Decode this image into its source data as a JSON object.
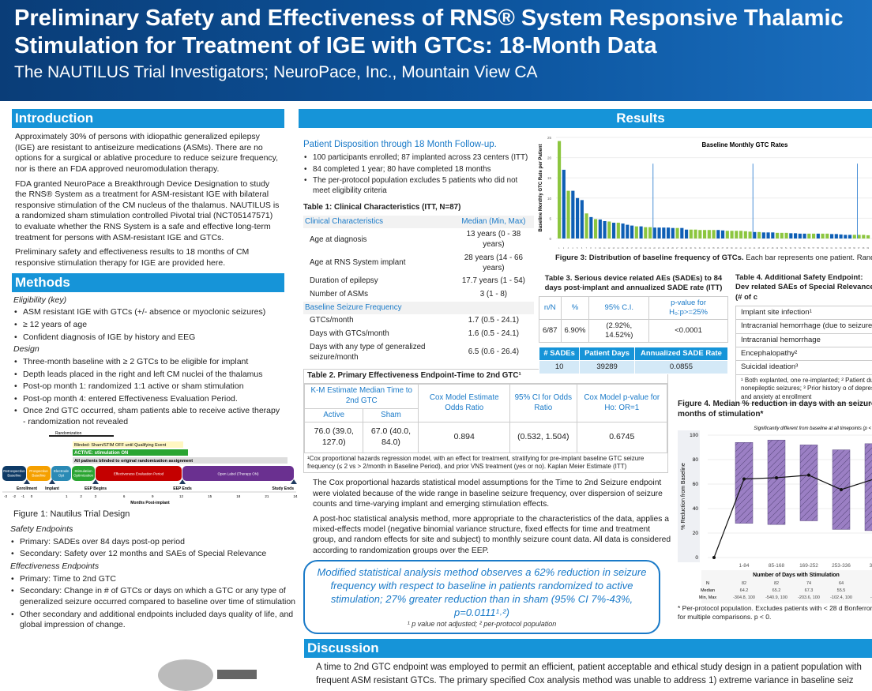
{
  "header": {
    "title_line1": "Preliminary Safety and Effectiveness of RNS® System Responsive Thalamic",
    "title_line2": "Stimulation for Treatment of IGE with GTCs: 18-Month Data",
    "authors": "The NAUTILUS Trial Investigators; NeuroPace, Inc., Mountain View CA"
  },
  "intro": {
    "heading": "Introduction",
    "paragraphs": [
      "Approximately 30% of persons with idiopathic generalized epilepsy (IGE) are resistant to antiseizure medications (ASMs). There are no options for a surgical or ablative procedure to reduce seizure frequency, nor is there an FDA approved neuromodulation therapy.",
      "FDA granted NeuroPace a Breakthrough Device Designation to study the RNS® System as a treatment for ASM-resistant IGE with bilateral responsive stimulation of the CM nucleus of the thalamus. NAUTILUS is a randomized sham stimulation controlled Pivotal trial (NCT05147571) to evaluate whether the RNS System is a safe and effective long-term treatment for persons with ASM-resistant IGE and GTCs.",
      "Preliminary safety and effectiveness results to 18 months of CM responsive stimulation therapy for IGE are provided here."
    ]
  },
  "methods": {
    "heading": "Methods",
    "eligibility_label": "Eligibility (key)",
    "eligibility": [
      "ASM resistant IGE with GTCs (+/- absence or myoclonic seizures)",
      "≥ 12 years of age",
      "Confident diagnosis of IGE by history and EEG"
    ],
    "design_label": "Design",
    "design": [
      "Three-month baseline with ≥ 2 GTCs to be eligible for implant",
      "Depth leads placed in the right and left CM nuclei of the thalamus",
      "Post-op month 1: randomized 1:1 active or sham stimulation",
      "Post-op month 4: entered Effectiveness Evaluation Period.",
      "Once 2nd GTC occurred, sham patients able to receive active therapy - randomization not revealed"
    ],
    "figure1": {
      "randomization": "Randomization",
      "event": "Blinded: Sham/STIM OFF until Qualifying Event",
      "active": "ACTIVE: stimulation ON",
      "blinded": "All patients blinded to original randomization assignment",
      "phases": [
        "Retrospective Baseline",
        "Prospective Baseline",
        "Electrode Opt",
        "Stimulation Optimization",
        "Effectiveness Evaluation Period",
        "Open Label (Therapy ON)"
      ],
      "milestones": [
        "Enrollment",
        "Implant",
        "EEP Begins",
        "EEP Ends",
        "Study Ends"
      ],
      "ticks": [
        "-3",
        "-2",
        "-1",
        "0",
        "1",
        "2",
        "3",
        "6",
        "9",
        "12",
        "15",
        "18",
        "21",
        "24"
      ],
      "xlabel": "Months Post-implant",
      "caption": "Figure 1: Nautilus Trial Design"
    },
    "safety_label": "Safety Endpoints",
    "safety": [
      "Primary: SADEs over 84 days post-op period",
      "Secondary: Safety over 12 months and SAEs of Special Relevance"
    ],
    "effect_label": "Effectiveness Endpoints",
    "effect": [
      "Primary: Time to 2nd GTC",
      "Secondary: Change in # of GTCs or days on which a GTC or any type of generalized seizure occurred compared to baseline over time of stimulation",
      "Other secondary and additional endpoints included days quality of life, and global impression of change."
    ]
  },
  "results": {
    "heading": "Results",
    "disposition_title": "Patient Disposition through 18 Month Follow-up.",
    "disposition": [
      "100 participants enrolled; 87 implanted across 23 centers (ITT)",
      "84 completed 1 year; 80 have completed 18 months",
      "The per-protocol population excludes 5 patients who did not meet eligibility criteria"
    ],
    "table1": {
      "title": "Table 1: Clinical Characteristics (ITT, N=87)",
      "col1": "Clinical Characteristics",
      "col2": "Median (Min, Max)",
      "rows1": [
        [
          "Age at diagnosis",
          "13 years (0 - 38 years)"
        ],
        [
          "Age at RNS System implant",
          "28 years (14 - 66 years)"
        ],
        [
          "Duration of epilepsy",
          "17.7 years (1 - 54)"
        ],
        [
          "Number of ASMs",
          "3 (1 - 8)"
        ]
      ],
      "section2": "Baseline Seizure Frequency",
      "rows2": [
        [
          "GTCs/month",
          "1.7 (0.5 - 24.1)"
        ],
        [
          "Days with GTCs/month",
          "1.6 (0.5 - 24.1)"
        ],
        [
          "Days with any type of generalized seizure/month",
          "6.5 (0.6 - 26.4)"
        ]
      ]
    },
    "table2": {
      "title": "Table 2. Primary Effectiveness Endpoint-Time to 2nd GTC¹",
      "km": "K-M Estimate Median Time to 2nd GTC",
      "active": "Active",
      "sham": "Sham",
      "cox": "Cox Model Estimate Odds Ratio",
      "ci": "95% CI for Odds Ratio",
      "p": "Cox Model p-value for Ho: OR=1",
      "values": [
        "76.0 (39.0, 127.0)",
        "67.0 (40.0, 84.0)",
        "0.894",
        "(0.532, 1.504)",
        "0.6745"
      ],
      "footnote": "¹Cox proportional hazards regression model, with an effect for treatment, stratifying for pre-implant baseline GTC seizure frequency (≤ 2 vs > 2/month in Baseline Period), and prior VNS treatment (yes or no). Kaplan Meier Estimate (ITT)"
    },
    "paragraphs": [
      "The Cox proportional hazards statistical model assumptions for the Time to 2nd Seizure endpoint were violated because of the wide range in baseline seizure frequency, over dispersion of seizure counts and time-varying implant and emerging stimulation effects.",
      "A post-hoc statistical analysis method, more appropriate to the characteristics of the data, applies a mixed-effects model (negative binomial variance structure, fixed effects for time and treatment group, and random effects for site and subject) to monthly seizure count data. All data is considered according to randomization groups over the EEP."
    ],
    "highlight": "Modified statistical analysis method observes a 62% reduction in seizure frequency with respect to baseline in patients randomized to active stimulation; 27% greater reduction than in sham (95% CI 7%-43%, p=0.0111¹˒²)",
    "highlight_note": "¹ p value not adjusted; ² per-protocol population",
    "figure3_caption_bold": "Figure 3: Distribution of baseline frequency of GTCs.",
    "figure3_caption": " Each bar represents one patient. Random Active are blue. Vertical lines represent median, 1st, and 3rd quartile of patients grouped by GTC b",
    "table3": {
      "title": "Table 3. Serious device related AEs (SADEs) to 84 days post-implant and annualized SADE rate (ITT)",
      "headers": [
        "n/N",
        "%",
        "95% C.I.",
        "p-value for H₀:p>=25%"
      ],
      "values": [
        "6/87",
        "6.90%",
        "(2.92%, 14.52%)",
        "<0.0001"
      ],
      "sade_headers": [
        "# SADEs",
        "Patient Days",
        "Annualized SADE Rate"
      ],
      "sade_values": [
        "10",
        "39289",
        "0.0855"
      ]
    },
    "table4": {
      "title": "Table 4. Additional Safety Endpoint: Dev related SAEs of Special Relevance (# of c",
      "rows": [
        "Implant site infection¹",
        "Intracranial hemorrhage (due to seizure",
        "Intracranial hemorrhage",
        "Encephalopathy²",
        "Suicidal ideation³"
      ],
      "footnote": "¹ Both explanted, one re-implanted; ² Patient due to nonepileptic seizures; ³ Prior history o of depression and anxiety at enrollment"
    },
    "figure4": {
      "title": "Figure 4. Median % reduction in days with an seizure by months of stimulation*",
      "note": "* Per-protocol population. Excludes patients with < 28 d Bonferroni correction for multiple comparisons. p < 0."
    }
  },
  "discussion": {
    "heading": "Discussion",
    "text": "A time to 2nd GTC endpoint was employed to permit an efficient, patient acceptable and ethical study design in a patient population with frequent ASM resistant GTCs. The primary specified Cox analysis method was unable to address 1) extreme variance in baseline seiz"
  },
  "chart_data": [
    {
      "type": "bar",
      "title": "Baseline Monthly GTC Rates",
      "ylabel": "Baseline Monthly GTC Rate per Patient",
      "ylim": [
        0,
        25
      ],
      "yticks": [
        0,
        5,
        10,
        15,
        20,
        25
      ],
      "colors": {
        "S": "#8cc63f",
        "A": "#0f5fb5"
      },
      "values": [
        24.1,
        17,
        11.8,
        11.8,
        10,
        9.5,
        6.2,
        5.3,
        4.8,
        4.7,
        4.3,
        4.2,
        3.9,
        3.9,
        3.7,
        3.4,
        3.2,
        3.0,
        3.0,
        2.8,
        2.8,
        2.7,
        2.7,
        2.7,
        2.7,
        2.6,
        2.6,
        2.6,
        2.2,
        2.2,
        2.2,
        2.1,
        2.1,
        2.1,
        2.1,
        2.1,
        2.0,
        1.9,
        1.9,
        1.9,
        1.9,
        1.8,
        1.7,
        1.6,
        1.6,
        1.5,
        1.5,
        1.5,
        1.4,
        1.4,
        1.4,
        1.3,
        1.3,
        1.2,
        1.2,
        1.2,
        1.2,
        1.2,
        1.2,
        1.2,
        1.1,
        1.1,
        1.0,
        0.9,
        0.9,
        0.9,
        0.9,
        0.9,
        0.8
      ],
      "arms": "SASAAASASAASASAAASASSAAAAASAASSSSSSAASSSSSSASAAASSSAAAASSASSAAAAASSSS",
      "quartile_lines_at_patient": [
        22,
        44,
        67
      ]
    },
    {
      "type": "bar",
      "subtitle": "Significantly different from baseline at all timepoints (p < 0",
      "xlabel": "Number of Days with Stimulation",
      "ylabel": "% Reduction from Baseline",
      "ylim": [
        0,
        100
      ],
      "yticks": [
        0,
        20,
        40,
        60,
        80,
        100
      ],
      "color": "#9b7fc4",
      "categories": [
        "1-84",
        "85-168",
        "169-252",
        "253-336",
        "337"
      ],
      "range_low": [
        28,
        27,
        30,
        23,
        22
      ],
      "range_high": [
        94,
        96,
        92,
        88,
        93
      ],
      "median_line": [
        64.2,
        65.2,
        67.3,
        55.5,
        64
      ],
      "table": {
        "N": [
          "82",
          "82",
          "74",
          "64",
          ""
        ],
        "Median": [
          "64.2",
          "65.2",
          "67.3",
          "55.5",
          ""
        ],
        "Min, Max": [
          "-304.8, 100",
          "-540.9, 100",
          "-203.6, 100",
          "-102.4, 100",
          "-10"
        ]
      }
    }
  ]
}
